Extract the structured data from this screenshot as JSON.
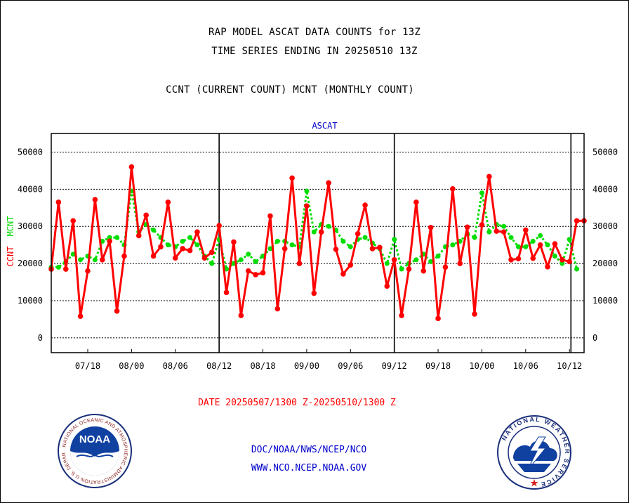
{
  "header": {
    "title_line1": "RAP MODEL ASCAT DATA COUNTS for 13Z",
    "title_line2": "TIME SERIES ENDING IN 20250510 13Z",
    "title_line3": "CCNT (CURRENT COUNT) MCNT (MONTHLY COUNT)"
  },
  "footer": {
    "date_range": "DATE 20250507/1300 Z-20250510/1300 Z",
    "org_line": "DOC/NOAA/NWS/NCEP/NCO",
    "url_line": "WWW.NCO.NCEP.NOAA.GOV",
    "noaa_logo_text": "NOAA",
    "noaa_seal_text": "NATIONAL OCEANIC AND ATMOSPHERIC ADMINISTRATION  U.S. DEPARTMENT OF COMMERCE",
    "nws_seal_text": "NATIONAL WEATHER SERVICE"
  },
  "colors": {
    "ccnt": "#ff0000",
    "mcnt": "#00dd00",
    "plot_title": "#0000cc",
    "grid": "#000000"
  },
  "chart_data": {
    "type": "line",
    "title": "ASCAT",
    "ylabel_left_series1": "CCNT",
    "ylabel_left_series2": "MCNT",
    "ylim": [
      -4000,
      55000
    ],
    "yticks": [
      0,
      10000,
      20000,
      30000,
      40000,
      50000
    ],
    "ytick_labels": [
      "0",
      "10000",
      "20000",
      "30000",
      "40000",
      "50000"
    ],
    "y_axis_both_sides": true,
    "grid": "horizontal dotted",
    "xlim": [
      0,
      73
    ],
    "xtick_positions": [
      5,
      11,
      17,
      23,
      29,
      35,
      41,
      47,
      53,
      59,
      65,
      71
    ],
    "xtick_labels": [
      "07/18",
      "08/00",
      "08/06",
      "08/12",
      "08/18",
      "09/00",
      "09/06",
      "09/12",
      "09/18",
      "10/00",
      "10/06",
      "10/12"
    ],
    "day_boundaries": [
      23,
      47,
      71.2
    ],
    "series": [
      {
        "name": "CCNT",
        "style": "solid line with dots",
        "x": [
          0,
          1,
          2,
          3,
          4,
          5,
          6,
          7,
          8,
          9,
          10,
          11,
          12,
          13,
          14,
          15,
          16,
          17,
          18,
          19,
          20,
          21,
          22,
          23,
          24,
          25,
          26,
          27,
          28,
          29,
          30,
          31,
          32,
          33,
          34,
          35,
          36,
          37,
          38,
          39,
          40,
          41,
          42,
          43,
          44,
          45,
          46,
          47,
          48,
          49,
          50,
          51,
          52,
          53,
          54,
          55,
          56,
          57,
          58,
          59,
          60,
          61,
          62,
          63,
          64,
          65,
          66,
          67,
          68,
          69,
          70,
          71,
          72,
          73
        ],
        "values": [
          18500,
          36500,
          18500,
          31500,
          5800,
          18000,
          37200,
          21000,
          26000,
          7200,
          22000,
          46000,
          27500,
          33000,
          22000,
          24500,
          36500,
          21500,
          24000,
          23500,
          28500,
          21500,
          23000,
          30200,
          12200,
          25800,
          6000,
          18000,
          17000,
          17500,
          32800,
          7800,
          24000,
          43000,
          20000,
          35500,
          12000,
          28500,
          41700,
          23800,
          17200,
          19600,
          28000,
          35700,
          24000,
          24300,
          13900,
          21000,
          6000,
          18500,
          36500,
          18000,
          29700,
          5200,
          19000,
          40100,
          20000,
          29800,
          6400,
          30400,
          43400,
          28700,
          28500,
          21000,
          21300,
          29000,
          21400,
          25000,
          19100,
          25300,
          21000,
          20500,
          31500,
          31500
        ]
      },
      {
        "name": "MCNT",
        "style": "dotted line",
        "x": [
          0,
          1,
          2,
          3,
          4,
          5,
          6,
          7,
          8,
          9,
          10,
          11,
          12,
          13,
          14,
          15,
          16,
          17,
          18,
          19,
          20,
          21,
          22,
          23,
          24,
          25,
          26,
          27,
          28,
          29,
          30,
          31,
          32,
          33,
          34,
          35,
          36,
          37,
          38,
          39,
          40,
          41,
          42,
          43,
          44,
          45,
          46,
          47,
          48,
          49,
          50,
          51,
          52,
          53,
          54,
          55,
          56,
          57,
          58,
          59,
          60,
          61,
          62,
          63,
          64,
          65,
          66,
          67,
          68,
          69,
          70,
          71,
          72
        ],
        "values": [
          19000,
          19000,
          20500,
          22500,
          21000,
          22000,
          21000,
          26000,
          27000,
          27000,
          25000,
          39500,
          28500,
          30500,
          29000,
          27000,
          25000,
          24500,
          26000,
          27000,
          25000,
          22000,
          20000,
          26500,
          18500,
          20000,
          21000,
          22500,
          20500,
          22000,
          24000,
          26000,
          26000,
          25000,
          24500,
          39500,
          28500,
          30500,
          30000,
          29000,
          26000,
          24500,
          26500,
          27000,
          25500,
          24000,
          20000,
          26500,
          18500,
          20000,
          21000,
          22500,
          20500,
          22000,
          24500,
          25000,
          26000,
          28000,
          27000,
          39000,
          28500,
          30500,
          30000,
          27000,
          24500,
          24500,
          26000,
          27500,
          25000,
          22000,
          20000,
          26500,
          18500
        ]
      }
    ]
  }
}
